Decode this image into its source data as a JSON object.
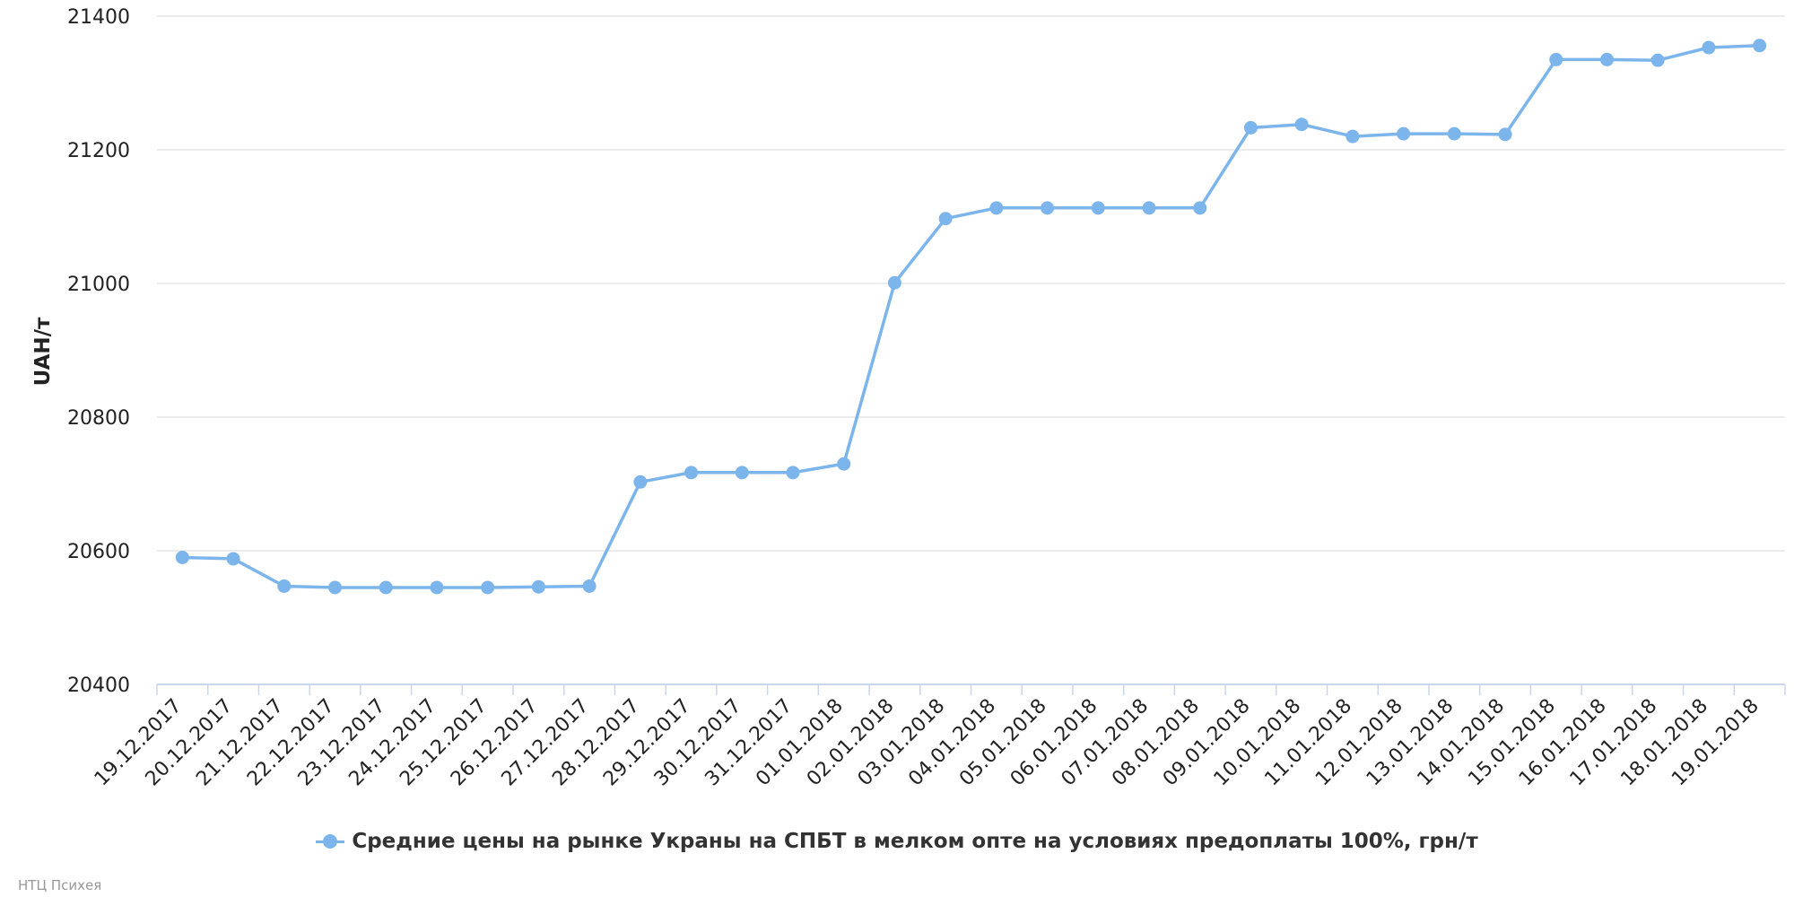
{
  "chart_data": {
    "type": "line",
    "ylabel": "UAH/т",
    "ylim": [
      20400,
      21400
    ],
    "yticks": [
      "20400",
      "20600",
      "20800",
      "21000",
      "21200",
      "21400"
    ],
    "grid": true,
    "legend_placement": "bottom-center",
    "categories": [
      "19.12.2017",
      "20.12.2017",
      "21.12.2017",
      "22.12.2017",
      "23.12.2017",
      "24.12.2017",
      "25.12.2017",
      "26.12.2017",
      "27.12.2017",
      "28.12.2017",
      "29.12.2017",
      "30.12.2017",
      "31.12.2017",
      "01.01.2018",
      "02.01.2018",
      "03.01.2018",
      "04.01.2018",
      "05.01.2018",
      "06.01.2018",
      "07.01.2018",
      "08.01.2018",
      "09.01.2018",
      "10.01.2018",
      "11.01.2018",
      "12.01.2018",
      "13.01.2018",
      "14.01.2018",
      "15.01.2018",
      "16.01.2018",
      "17.01.2018",
      "18.01.2018",
      "19.01.2018"
    ],
    "series": [
      {
        "name": "Средние цены на рынке Украны на СПБТ в мелком опте на условиях предоплаты 100%, грн/т",
        "color": "#7cb5ec",
        "values": [
          20590,
          20588,
          20547,
          20545,
          20545,
          20545,
          20545,
          20546,
          20547,
          20703,
          20717,
          20717,
          20717,
          20730,
          21001,
          21097,
          21113,
          21113,
          21113,
          21113,
          21113,
          21233,
          21238,
          21220,
          21224,
          21224,
          21223,
          21335,
          21335,
          21334,
          21353,
          21356
        ]
      }
    ]
  },
  "credits": "НТЦ Психея"
}
